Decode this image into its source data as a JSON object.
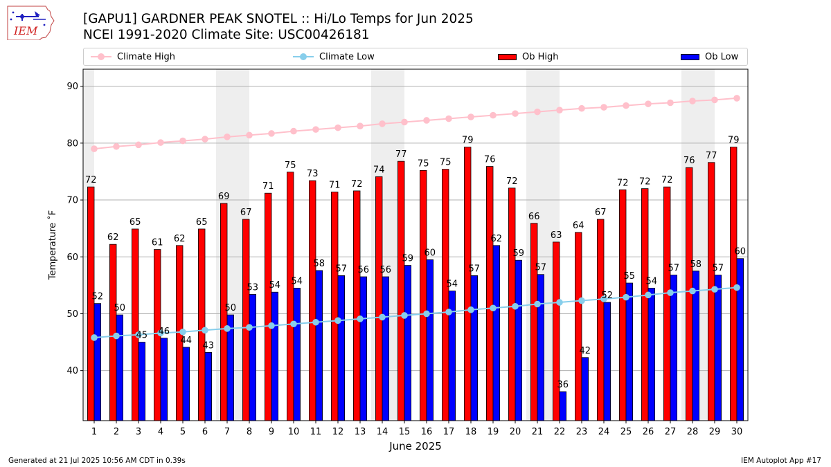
{
  "logo": {
    "text": "IEM"
  },
  "header": {
    "title_line1": "[GAPU1] GARDNER PEAK SNOTEL :: Hi/Lo Temps for Jun 2025",
    "title_line2": "NCEI 1991-2020 Climate Site: USC00426181"
  },
  "legend": {
    "climate_high": "Climate High",
    "climate_low": "Climate Low",
    "ob_high": "Ob High",
    "ob_low": "Ob Low"
  },
  "footer": {
    "generated": "Generated at 21 Jul 2025 10:56 AM CDT in 0.39s",
    "app": "IEM Autoplot App #17"
  },
  "chart_data": {
    "type": "bar",
    "xlabel": "June 2025",
    "ylabel": "Temperature ˚F",
    "ylim": [
      31.2,
      93
    ],
    "yticks": [
      40,
      50,
      60,
      70,
      80,
      90
    ],
    "grid": true,
    "legend_position": "top",
    "categories": [
      1,
      2,
      3,
      4,
      5,
      6,
      7,
      8,
      9,
      10,
      11,
      12,
      13,
      14,
      15,
      16,
      17,
      18,
      19,
      20,
      21,
      22,
      23,
      24,
      25,
      26,
      27,
      28,
      29,
      30
    ],
    "weekend_shading": [
      1,
      7,
      8,
      14,
      15,
      21,
      22,
      28,
      29
    ],
    "series": [
      {
        "name": "Ob High",
        "kind": "bar",
        "color": "#ff0000",
        "values": [
          72.3,
          62.2,
          64.9,
          61.3,
          62.0,
          64.9,
          69.4,
          66.6,
          71.2,
          74.9,
          73.4,
          71.4,
          71.6,
          74.1,
          76.8,
          75.2,
          75.4,
          79.3,
          75.9,
          72.1,
          65.9,
          62.6,
          64.3,
          66.6,
          71.8,
          72.0,
          72.3,
          75.7,
          76.6,
          79.3
        ],
        "labels": [
          72,
          62,
          65,
          61,
          62,
          65,
          69,
          67,
          71,
          75,
          73,
          71,
          72,
          74,
          77,
          75,
          75,
          79,
          76,
          72,
          66,
          63,
          64,
          67,
          72,
          72,
          72,
          76,
          77,
          79
        ]
      },
      {
        "name": "Ob Low",
        "kind": "bar",
        "color": "#0000ff",
        "values": [
          51.8,
          49.8,
          45.0,
          45.7,
          44.1,
          43.2,
          49.8,
          53.4,
          53.8,
          54.5,
          57.6,
          56.7,
          56.5,
          56.5,
          58.5,
          59.5,
          54.0,
          56.7,
          62.0,
          59.4,
          56.9,
          36.3,
          42.3,
          52.0,
          55.4,
          54.5,
          56.8,
          57.5,
          56.8,
          59.7
        ],
        "labels": [
          52,
          50,
          45,
          46,
          44,
          43,
          50,
          53,
          54,
          54,
          58,
          57,
          56,
          56,
          59,
          60,
          54,
          57,
          62,
          59,
          57,
          36,
          42,
          52,
          55,
          54,
          57,
          58,
          57,
          60
        ]
      },
      {
        "name": "Climate High",
        "kind": "line",
        "color": "#ffc0cb",
        "values": [
          79.0,
          79.4,
          79.7,
          80.1,
          80.4,
          80.7,
          81.1,
          81.4,
          81.7,
          82.1,
          82.4,
          82.7,
          83.0,
          83.4,
          83.7,
          84.0,
          84.3,
          84.6,
          84.9,
          85.2,
          85.5,
          85.8,
          86.1,
          86.3,
          86.6,
          86.9,
          87.1,
          87.4,
          87.6,
          87.9
        ]
      },
      {
        "name": "Climate Low",
        "kind": "line",
        "color": "#87ceeb",
        "values": [
          45.8,
          46.1,
          46.3,
          46.6,
          46.8,
          47.1,
          47.4,
          47.6,
          47.9,
          48.2,
          48.5,
          48.8,
          49.1,
          49.4,
          49.7,
          50.0,
          50.3,
          50.7,
          51.0,
          51.3,
          51.7,
          52.0,
          52.3,
          52.6,
          52.9,
          53.3,
          53.7,
          54.0,
          54.3,
          54.6
        ]
      }
    ]
  }
}
